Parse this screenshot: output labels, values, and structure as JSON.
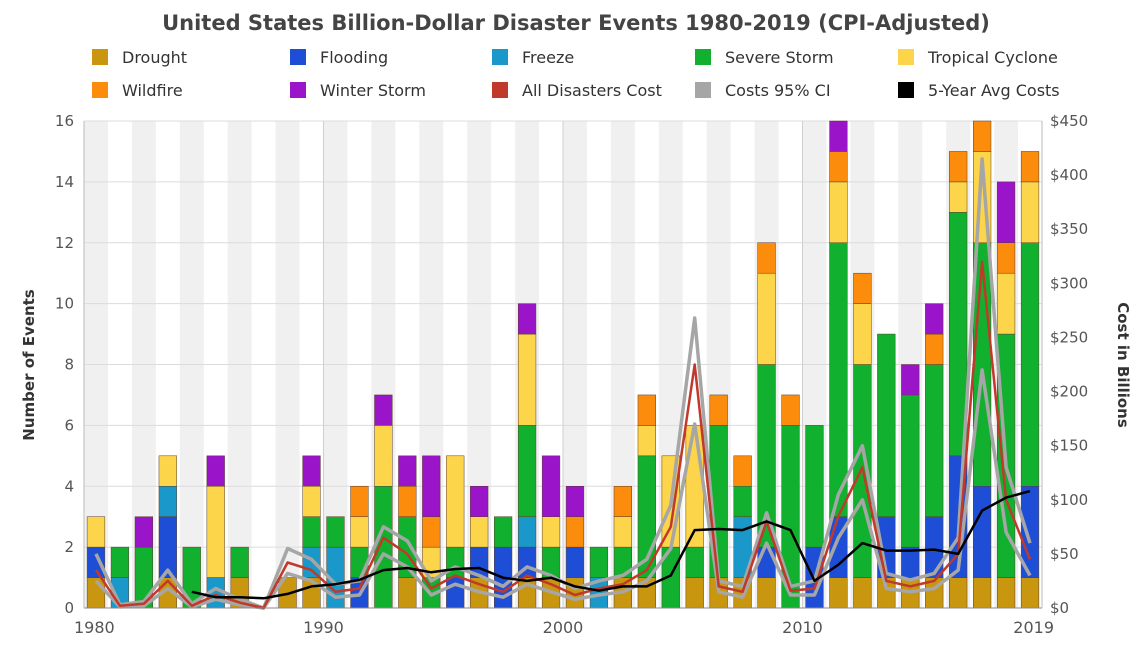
{
  "chart_data": {
    "type": "bar",
    "title": "United States Billion-Dollar Disaster Events 1980-2019 (CPI-Adjusted)",
    "ylabel": "Number of Events",
    "y2label": "Cost in Billions",
    "ylim": [
      0,
      16
    ],
    "y2lim": [
      0,
      450
    ],
    "yticks": [
      "0",
      "2",
      "4",
      "6",
      "8",
      "10",
      "12",
      "14",
      "16"
    ],
    "y2ticks": [
      "$0",
      "$50",
      "$100",
      "$150",
      "$200",
      "$250",
      "$300",
      "$350",
      "$400",
      "$450"
    ],
    "xticks": [
      "1980",
      "1990",
      "2000",
      "2010",
      "2019"
    ],
    "x": [
      1980,
      1981,
      1982,
      1983,
      1984,
      1985,
      1986,
      1987,
      1988,
      1989,
      1990,
      1991,
      1992,
      1993,
      1994,
      1995,
      1996,
      1997,
      1998,
      1999,
      2000,
      2001,
      2002,
      2003,
      2004,
      2005,
      2006,
      2007,
      2008,
      2009,
      2010,
      2011,
      2012,
      2013,
      2014,
      2015,
      2016,
      2017,
      2018,
      2019
    ],
    "legend_position": "top",
    "series": [
      {
        "name": "Drought",
        "color": "#c8960f",
        "values": [
          1,
          0,
          0,
          1,
          0,
          0,
          1,
          0,
          1,
          1,
          0,
          0,
          0,
          1,
          0,
          0,
          1,
          0,
          1,
          1,
          1,
          0,
          1,
          1,
          0,
          1,
          1,
          1,
          1,
          0,
          0,
          1,
          1,
          1,
          1,
          1,
          1,
          1,
          1,
          1
        ]
      },
      {
        "name": "Flooding",
        "color": "#1f4ed6",
        "values": [
          1,
          0,
          0,
          2,
          0,
          0,
          0,
          0,
          0,
          0,
          0,
          1,
          0,
          0,
          0,
          1,
          1,
          2,
          1,
          0,
          1,
          0,
          0,
          0,
          0,
          0,
          0,
          0,
          1,
          0,
          2,
          2,
          0,
          2,
          1,
          2,
          4,
          3,
          0,
          3
        ]
      },
      {
        "name": "Freeze",
        "color": "#1a98c9",
        "values": [
          0,
          1,
          0,
          1,
          0,
          1,
          0,
          0,
          0,
          1,
          2,
          0,
          0,
          0,
          0,
          0,
          0,
          0,
          1,
          0,
          0,
          1,
          0,
          0,
          0,
          0,
          0,
          2,
          0,
          0,
          0,
          0,
          0,
          0,
          0,
          0,
          0,
          0,
          0,
          0
        ]
      },
      {
        "name": "Severe Storm",
        "color": "#11b12f",
        "values": [
          0,
          1,
          2,
          0,
          2,
          0,
          1,
          0,
          0,
          1,
          1,
          1,
          4,
          2,
          1,
          1,
          0,
          1,
          3,
          1,
          0,
          1,
          1,
          4,
          2,
          1,
          5,
          1,
          6,
          6,
          4,
          9,
          7,
          6,
          5,
          5,
          8,
          8,
          8,
          8
        ]
      },
      {
        "name": "Tropical Cyclone",
        "color": "#fcd54a",
        "values": [
          1,
          0,
          0,
          1,
          0,
          3,
          0,
          0,
          0,
          1,
          0,
          1,
          2,
          0,
          1,
          3,
          1,
          0,
          3,
          1,
          0,
          0,
          1,
          1,
          3,
          4,
          0,
          0,
          3,
          0,
          0,
          2,
          2,
          0,
          0,
          0,
          1,
          3,
          2,
          2
        ]
      },
      {
        "name": "Wildfire",
        "color": "#fc8c0c",
        "values": [
          0,
          0,
          0,
          0,
          0,
          0,
          0,
          0,
          0,
          0,
          0,
          1,
          0,
          1,
          1,
          0,
          0,
          0,
          0,
          0,
          1,
          0,
          1,
          1,
          0,
          0,
          1,
          1,
          1,
          1,
          0,
          1,
          1,
          0,
          0,
          1,
          1,
          1,
          1,
          1
        ]
      },
      {
        "name": "Winter Storm",
        "color": "#9a14c9",
        "values": [
          0,
          0,
          1,
          0,
          0,
          1,
          0,
          0,
          0,
          1,
          0,
          0,
          1,
          1,
          2,
          0,
          1,
          0,
          1,
          2,
          1,
          0,
          0,
          0,
          0,
          0,
          0,
          0,
          0,
          0,
          0,
          1,
          0,
          0,
          1,
          1,
          0,
          0,
          2,
          0
        ]
      }
    ],
    "lines": [
      {
        "name": "All Disasters Cost",
        "color": "#c0392b",
        "values": [
          35,
          2,
          4,
          25,
          2,
          12,
          5,
          0,
          42,
          35,
          15,
          18,
          65,
          50,
          18,
          30,
          22,
          15,
          30,
          22,
          12,
          18,
          22,
          35,
          75,
          225,
          20,
          15,
          80,
          16,
          18,
          85,
          130,
          25,
          20,
          25,
          50,
          320,
          100,
          45
        ]
      },
      {
        "name": "Costs 95% CI",
        "color": "#a6a6a6",
        "values_low": [
          25,
          1,
          2,
          18,
          1,
          8,
          3,
          0,
          32,
          25,
          10,
          12,
          50,
          38,
          12,
          22,
          15,
          10,
          22,
          15,
          8,
          12,
          15,
          25,
          55,
          170,
          15,
          10,
          60,
          12,
          12,
          65,
          100,
          18,
          15,
          18,
          35,
          220,
          70,
          30
        ],
        "values_high": [
          50,
          3,
          6,
          35,
          4,
          18,
          8,
          0,
          55,
          45,
          22,
          25,
          75,
          62,
          25,
          38,
          30,
          20,
          38,
          30,
          18,
          25,
          30,
          45,
          95,
          268,
          25,
          20,
          88,
          20,
          25,
          105,
          150,
          32,
          26,
          32,
          65,
          415,
          130,
          60
        ]
      },
      {
        "name": "5-Year Avg Costs",
        "color": "#000000",
        "values": [
          null,
          null,
          null,
          null,
          15,
          10,
          10,
          9,
          13,
          20,
          22,
          26,
          35,
          37,
          33,
          36,
          37,
          28,
          25,
          28,
          20,
          16,
          20,
          20,
          30,
          72,
          73,
          72,
          80,
          72,
          25,
          40,
          60,
          53,
          53,
          54,
          50,
          90,
          102,
          108
        ]
      }
    ]
  }
}
